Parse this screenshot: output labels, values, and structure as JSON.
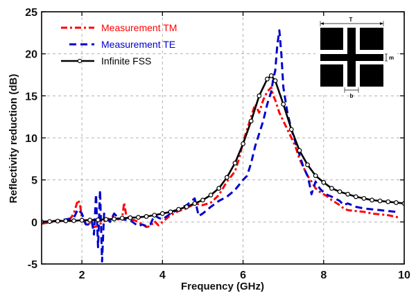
{
  "chart_data": {
    "type": "line",
    "title": "",
    "xlabel": "Frequency (GHz)",
    "ylabel": "Reflectivity reduction (dB)",
    "xlim": [
      1,
      10
    ],
    "ylim": [
      -5,
      25
    ],
    "xticks": [
      2,
      4,
      6,
      8,
      10
    ],
    "yticks": [
      -5,
      0,
      5,
      10,
      15,
      20,
      25
    ],
    "grid": true,
    "legend_position": "top-left",
    "series": [
      {
        "name": "Measurement TM",
        "color": "#ff0000",
        "style": "dash-dot",
        "x": [
          1.0,
          1.4,
          1.7,
          1.8,
          1.9,
          1.95,
          2.0,
          2.1,
          2.2,
          2.3,
          2.4,
          2.5,
          2.6,
          2.7,
          2.8,
          2.9,
          3.0,
          3.05,
          3.1,
          3.2,
          3.3,
          3.4,
          3.5,
          3.6,
          3.7,
          3.8,
          3.9,
          4.0,
          4.2,
          4.4,
          4.6,
          4.8,
          5.0,
          5.2,
          5.4,
          5.6,
          5.8,
          5.9,
          6.0,
          6.1,
          6.2,
          6.3,
          6.4,
          6.5,
          6.6,
          6.7,
          6.75,
          6.8,
          6.9,
          7.0,
          7.1,
          7.2,
          7.3,
          7.4,
          7.5,
          7.6,
          7.7,
          7.8,
          7.9,
          8.0,
          8.1,
          8.2,
          8.3,
          8.4,
          8.5,
          8.6,
          8.8,
          9.0,
          9.2,
          9.4,
          9.6,
          9.8,
          9.9
        ],
        "y": [
          -0.2,
          0.1,
          0.3,
          1.0,
          2.6,
          2.2,
          0.5,
          -0.3,
          -0.2,
          -0.6,
          -0.5,
          0.0,
          0.2,
          0.5,
          0.6,
          0.3,
          0.5,
          2.3,
          0.8,
          0.3,
          0.2,
          0.0,
          -0.3,
          -0.6,
          -0.5,
          0.1,
          -0.4,
          0.0,
          0.8,
          1.3,
          1.6,
          2.2,
          2.0,
          2.3,
          3.2,
          4.8,
          6.0,
          7.5,
          9.5,
          11.0,
          12.5,
          14.0,
          13.0,
          14.5,
          15.5,
          16.0,
          15.0,
          14.5,
          13.0,
          12.0,
          11.0,
          10.0,
          9.0,
          7.5,
          6.5,
          5.5,
          4.8,
          4.0,
          3.6,
          3.3,
          3.0,
          2.6,
          2.3,
          2.0,
          1.6,
          1.4,
          1.3,
          1.2,
          1.0,
          0.9,
          0.8,
          0.6,
          0.5
        ]
      },
      {
        "name": "Measurement TE",
        "color": "#0000cc",
        "style": "dashed",
        "x": [
          1.0,
          1.3,
          1.6,
          1.8,
          1.9,
          2.0,
          2.1,
          2.2,
          2.25,
          2.3,
          2.35,
          2.4,
          2.45,
          2.5,
          2.55,
          2.6,
          2.7,
          2.8,
          2.9,
          3.0,
          3.2,
          3.4,
          3.5,
          3.6,
          3.7,
          3.8,
          3.9,
          4.0,
          4.2,
          4.4,
          4.6,
          4.8,
          4.9,
          5.0,
          5.2,
          5.4,
          5.6,
          5.8,
          6.0,
          6.1,
          6.2,
          6.3,
          6.4,
          6.5,
          6.6,
          6.7,
          6.75,
          6.8,
          6.85,
          6.9,
          6.95,
          7.0,
          7.1,
          7.2,
          7.3,
          7.4,
          7.5,
          7.6,
          7.65,
          7.7,
          7.8,
          7.9,
          8.0,
          8.1,
          8.2,
          8.4,
          8.5,
          8.6,
          8.8,
          9.0,
          9.2,
          9.4,
          9.6,
          9.8
        ],
        "y": [
          0.0,
          0.1,
          0.3,
          0.5,
          1.5,
          1.0,
          -0.3,
          -0.3,
          0.0,
          -1.5,
          3.3,
          -3.0,
          3.8,
          -4.7,
          1.0,
          0.5,
          0.0,
          1.0,
          0.5,
          0.3,
          0.2,
          -0.5,
          -0.3,
          -0.5,
          -0.3,
          0.8,
          0.5,
          0.3,
          1.0,
          1.5,
          2.0,
          2.8,
          0.7,
          1.0,
          1.8,
          2.5,
          3.0,
          3.8,
          5.0,
          5.5,
          7.0,
          9.0,
          10.5,
          12.0,
          14.0,
          15.5,
          17.0,
          18.0,
          21.0,
          22.8,
          20.0,
          16.0,
          13.0,
          11.0,
          9.5,
          8.0,
          6.5,
          5.5,
          4.5,
          3.3,
          4.8,
          4.0,
          3.5,
          3.2,
          3.0,
          2.5,
          2.0,
          2.2,
          1.8,
          1.6,
          1.5,
          1.4,
          1.3,
          1.2
        ]
      },
      {
        "name": "Infinite FSS",
        "color": "#000000",
        "style": "solid-circle-markers",
        "x": [
          1.0,
          1.2,
          1.4,
          1.6,
          1.8,
          2.0,
          2.2,
          2.4,
          2.6,
          2.8,
          3.0,
          3.2,
          3.4,
          3.6,
          3.8,
          4.0,
          4.2,
          4.4,
          4.6,
          4.8,
          5.0,
          5.2,
          5.4,
          5.6,
          5.8,
          6.0,
          6.2,
          6.4,
          6.6,
          6.7,
          6.8,
          7.0,
          7.2,
          7.4,
          7.6,
          7.8,
          8.0,
          8.2,
          8.4,
          8.6,
          8.8,
          9.0,
          9.2,
          9.4,
          9.6,
          9.8,
          10.0
        ],
        "y": [
          0.0,
          0.05,
          0.1,
          0.12,
          0.15,
          0.2,
          0.22,
          0.25,
          0.3,
          0.35,
          0.45,
          0.5,
          0.55,
          0.65,
          0.8,
          1.0,
          1.2,
          1.5,
          1.8,
          2.2,
          2.6,
          3.2,
          4.0,
          5.3,
          7.0,
          9.3,
          12.0,
          15.0,
          17.0,
          17.4,
          16.8,
          14.0,
          11.0,
          8.5,
          6.8,
          5.5,
          4.7,
          4.0,
          3.6,
          3.3,
          3.0,
          2.8,
          2.6,
          2.5,
          2.4,
          2.3,
          2.2
        ]
      }
    ]
  },
  "inset": {
    "labels": {
      "period": "T",
      "gap": "m",
      "width": "b"
    }
  }
}
